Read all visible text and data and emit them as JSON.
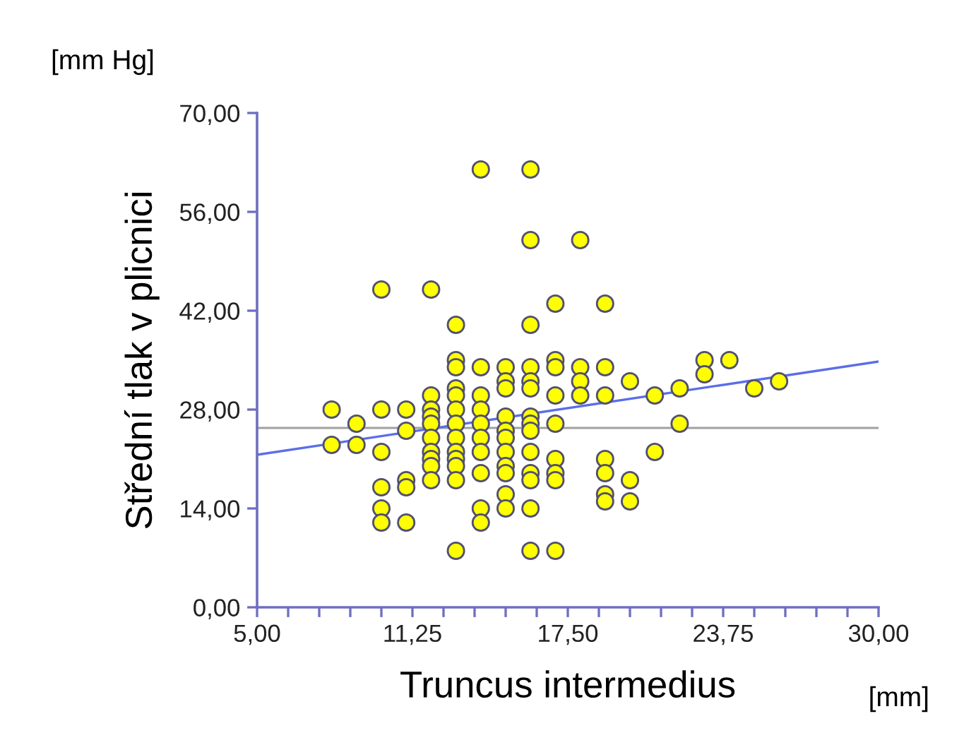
{
  "chart_data": {
    "type": "scatter",
    "xlabel": "Truncus intermedius",
    "ylabel": "Střední tlak v plicnici",
    "annotations": [
      "[mm Hg]",
      "[mm]"
    ],
    "series": [
      {
        "color": "#ffff00",
        "marker": "circle",
        "x": [
          8,
          8,
          9,
          9,
          10,
          10,
          10,
          10,
          10,
          10,
          11,
          11,
          11,
          11,
          11,
          12,
          12,
          12,
          12,
          12,
          12,
          12,
          12,
          12,
          12,
          13,
          13,
          13,
          13,
          13,
          13,
          13,
          13,
          13,
          13,
          13,
          13,
          13,
          14,
          14,
          14,
          14,
          14,
          14,
          14,
          14,
          14,
          14,
          15,
          15,
          15,
          15,
          15,
          15,
          15,
          15,
          15,
          15,
          15,
          16,
          16,
          16,
          16,
          16,
          16,
          16,
          16,
          16,
          16,
          16,
          16,
          16,
          16,
          17,
          17,
          17,
          17,
          17,
          17,
          17,
          17,
          17,
          18,
          18,
          18,
          18,
          19,
          19,
          19,
          19,
          19,
          19,
          19,
          20,
          20,
          20,
          21,
          21,
          22,
          22,
          23,
          23,
          24,
          25,
          26
        ],
        "values": [
          28,
          23,
          26,
          23,
          45,
          28,
          22,
          17,
          14,
          12,
          28,
          25,
          18,
          17,
          12,
          45,
          30,
          28,
          27,
          26,
          24,
          22,
          21,
          20,
          18,
          40,
          35,
          34,
          31,
          30,
          28,
          26,
          24,
          22,
          21,
          20,
          18,
          8,
          62,
          34,
          30,
          28,
          26,
          24,
          22,
          19,
          14,
          12,
          34,
          32,
          31,
          27,
          25,
          24,
          22,
          20,
          19,
          16,
          14,
          62,
          52,
          40,
          34,
          32,
          31,
          27,
          26,
          25,
          22,
          19,
          18,
          14,
          8,
          43,
          35,
          34,
          30,
          26,
          21,
          19,
          18,
          8,
          52,
          34,
          32,
          30,
          43,
          34,
          30,
          21,
          19,
          16,
          15,
          32,
          18,
          15,
          30,
          22,
          31,
          26,
          35,
          33,
          35,
          31,
          32
        ]
      },
      {
        "type": "line",
        "color": "#5b6ee8",
        "marker": "none",
        "line_style": "solid",
        "x": [
          5,
          30
        ],
        "values": [
          21.6,
          34.8
        ]
      }
    ],
    "ref_lines": [
      {
        "axis": "y",
        "value": 25.4,
        "color": "#a0a0a0",
        "line_style": "solid"
      }
    ],
    "xlim": [
      5,
      30
    ],
    "xticks": [
      {
        "value": 5,
        "label": "5,00"
      },
      {
        "value": 6.25,
        "label": null
      },
      {
        "value": 7.5,
        "label": null
      },
      {
        "value": 8.75,
        "label": null
      },
      {
        "value": 10,
        "label": null
      },
      {
        "value": 11.25,
        "label": "11,25"
      },
      {
        "value": 12.5,
        "label": null
      },
      {
        "value": 13.75,
        "label": null
      },
      {
        "value": 15,
        "label": null
      },
      {
        "value": 16.25,
        "label": null
      },
      {
        "value": 17.5,
        "label": "17,50"
      },
      {
        "value": 18.75,
        "label": null
      },
      {
        "value": 20,
        "label": null
      },
      {
        "value": 21.25,
        "label": null
      },
      {
        "value": 22.5,
        "label": null
      },
      {
        "value": 23.75,
        "label": "23,75"
      },
      {
        "value": 25,
        "label": null
      },
      {
        "value": 26.25,
        "label": null
      },
      {
        "value": 27.5,
        "label": null
      },
      {
        "value": 28.75,
        "label": null
      },
      {
        "value": 30,
        "label": "30,00"
      }
    ],
    "ylim": [
      0,
      70
    ],
    "yticks": [
      {
        "value": 0,
        "label": "0,00"
      },
      {
        "value": 14,
        "label": "14,00"
      },
      {
        "value": 28,
        "label": "28,00"
      },
      {
        "value": 42,
        "label": "42,00"
      },
      {
        "value": 56,
        "label": "56,00"
      },
      {
        "value": 70,
        "label": "70,00"
      }
    ],
    "grid": false,
    "legend": false
  }
}
